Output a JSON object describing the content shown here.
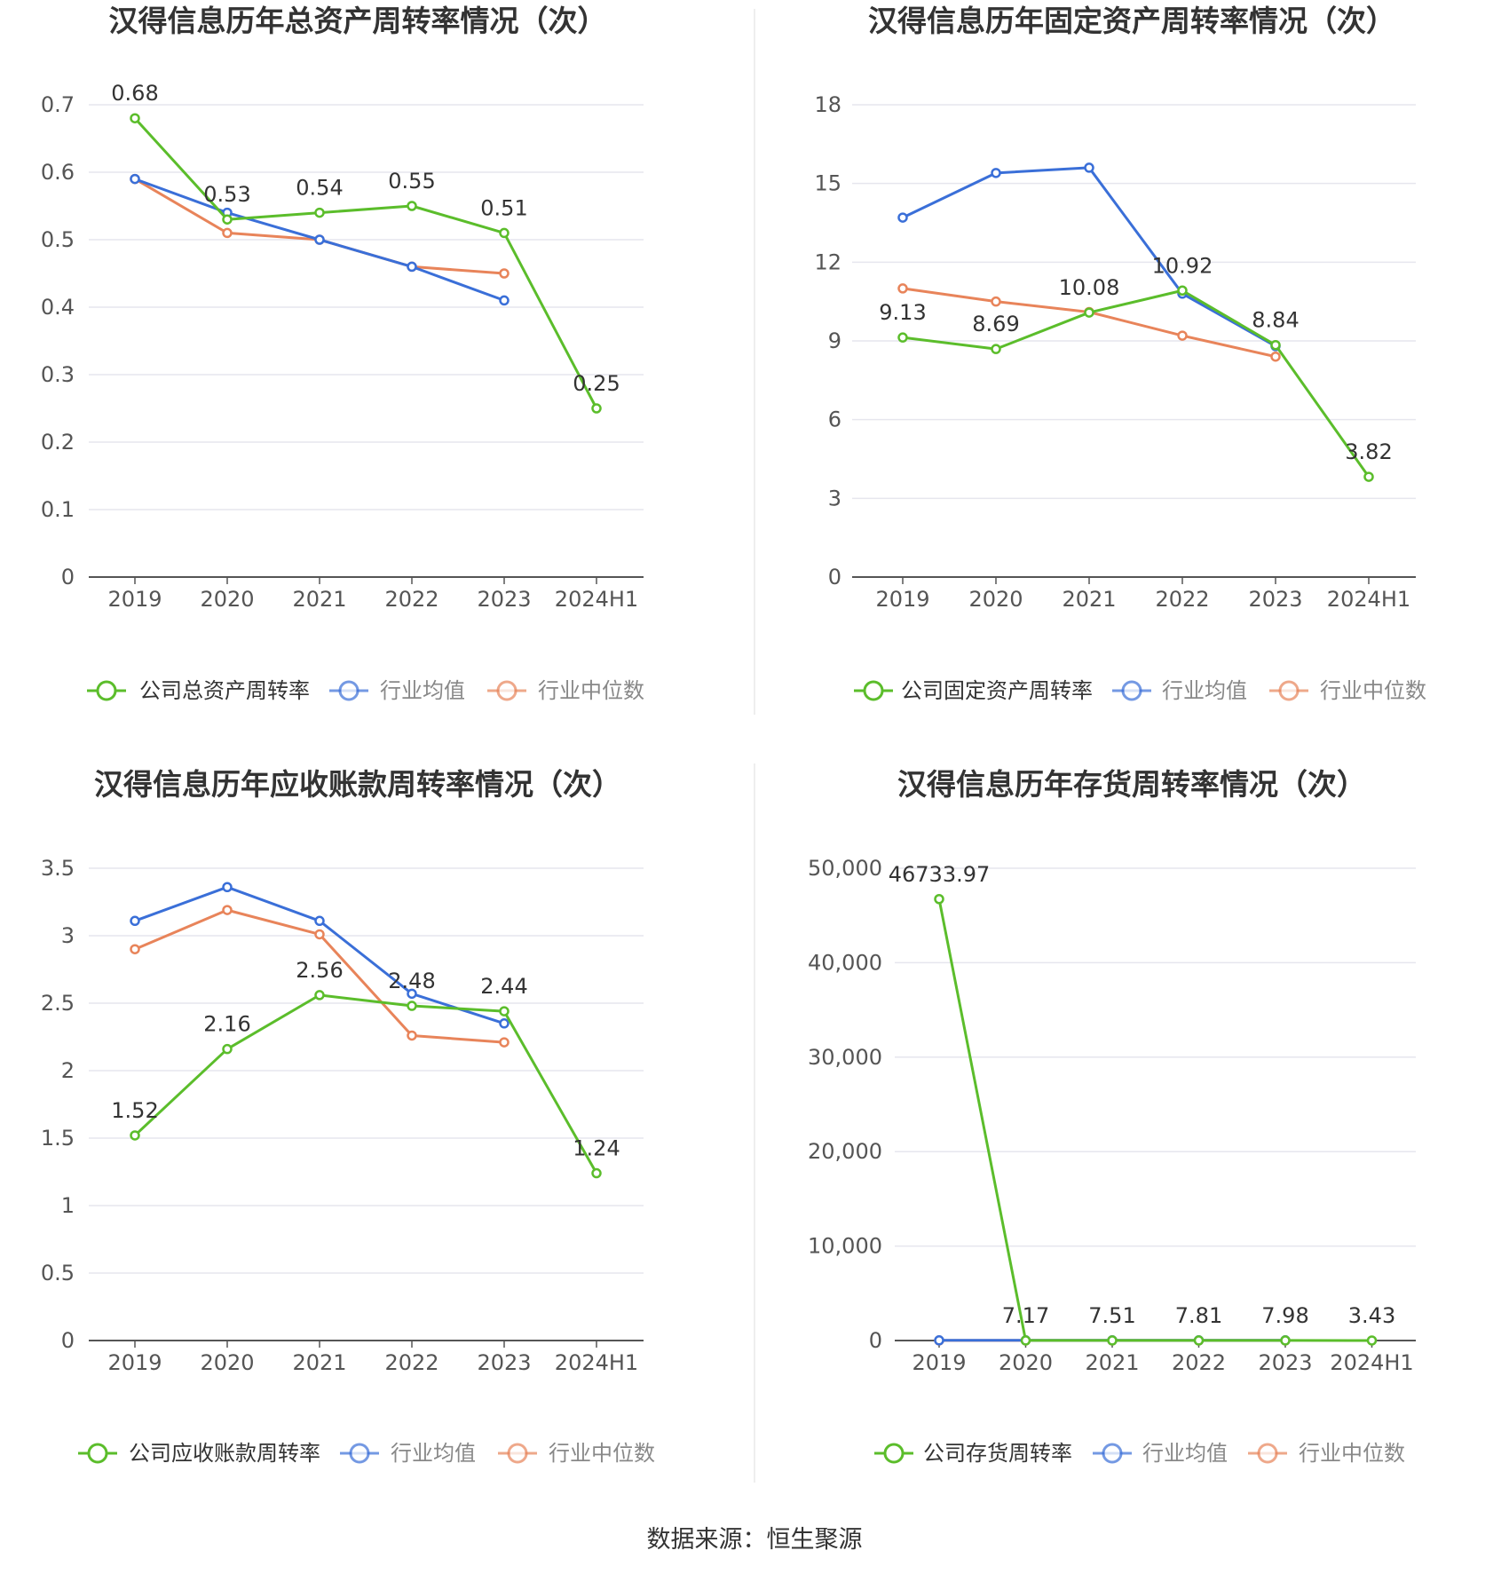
{
  "colors": {
    "company": "#5bbd2b",
    "average": "#3a6fd8",
    "median": "#e8845a",
    "grid": "#e6e6ee",
    "axis": "#555555"
  },
  "chart_data": [
    {
      "type": "line",
      "title": "汉得信息历年总资产周转率情况（次）",
      "categories": [
        "2019",
        "2020",
        "2021",
        "2022",
        "2023",
        "2024H1"
      ],
      "ylim": [
        0,
        0.7
      ],
      "yticks": [
        "0",
        "0.1",
        "0.2",
        "0.3",
        "0.4",
        "0.5",
        "0.6",
        "0.7"
      ],
      "ytick_values": [
        0,
        0.1,
        0.2,
        0.3,
        0.4,
        0.5,
        0.6,
        0.7
      ],
      "grid": true,
      "legend": "bottom",
      "series": [
        {
          "name": "公司总资产周转率",
          "values": [
            0.68,
            0.53,
            0.54,
            0.55,
            0.51,
            0.25
          ],
          "labels": [
            "0.68",
            "0.53",
            "0.54",
            "0.55",
            "0.51",
            "0.25"
          ]
        },
        {
          "name": "行业均值",
          "values": [
            0.59,
            0.54,
            0.5,
            0.46,
            0.41,
            null
          ]
        },
        {
          "name": "行业中位数",
          "values": [
            0.59,
            0.51,
            0.5,
            0.46,
            0.45,
            null
          ]
        }
      ]
    },
    {
      "type": "line",
      "title": "汉得信息历年固定资产周转率情况（次）",
      "categories": [
        "2019",
        "2020",
        "2021",
        "2022",
        "2023",
        "2024H1"
      ],
      "ylim": [
        0,
        18
      ],
      "yticks": [
        "0",
        "3",
        "6",
        "9",
        "12",
        "15",
        "18"
      ],
      "ytick_values": [
        0,
        3,
        6,
        9,
        12,
        15,
        18
      ],
      "grid": true,
      "legend": "bottom",
      "series": [
        {
          "name": "公司固定资产周转率",
          "values": [
            9.13,
            8.69,
            10.08,
            10.92,
            8.84,
            3.82
          ],
          "labels": [
            "9.13",
            "8.69",
            "10.08",
            "10.92",
            "8.84",
            "3.82"
          ]
        },
        {
          "name": "行业均值",
          "values": [
            13.7,
            15.4,
            15.6,
            10.8,
            8.8,
            null
          ]
        },
        {
          "name": "行业中位数",
          "values": [
            11.0,
            10.5,
            10.1,
            9.2,
            8.4,
            null
          ]
        }
      ]
    },
    {
      "type": "line",
      "title": "汉得信息历年应收账款周转率情况（次）",
      "categories": [
        "2019",
        "2020",
        "2021",
        "2022",
        "2023",
        "2024H1"
      ],
      "ylim": [
        0,
        3.5
      ],
      "yticks": [
        "0",
        "0.5",
        "1",
        "1.5",
        "2",
        "2.5",
        "3",
        "3.5"
      ],
      "ytick_values": [
        0,
        0.5,
        1,
        1.5,
        2,
        2.5,
        3,
        3.5
      ],
      "grid": true,
      "legend": "bottom",
      "series": [
        {
          "name": "公司应收账款周转率",
          "values": [
            1.52,
            2.16,
            2.56,
            2.48,
            2.44,
            1.24
          ],
          "labels": [
            "1.52",
            "2.16",
            "2.56",
            "2.48",
            "2.44",
            "1.24"
          ]
        },
        {
          "name": "行业均值",
          "values": [
            3.11,
            3.36,
            3.11,
            2.57,
            2.35,
            null
          ]
        },
        {
          "name": "行业中位数",
          "values": [
            2.9,
            3.19,
            3.01,
            2.26,
            2.21,
            null
          ]
        }
      ]
    },
    {
      "type": "line",
      "title": "汉得信息历年存货周转率情况（次）",
      "categories": [
        "2019",
        "2020",
        "2021",
        "2022",
        "2023",
        "2024H1"
      ],
      "ylim": [
        0,
        50000
      ],
      "yticks": [
        "0",
        "10,000",
        "20,000",
        "30,000",
        "40,000",
        "50,000"
      ],
      "ytick_values": [
        0,
        10000,
        20000,
        30000,
        40000,
        50000
      ],
      "grid": true,
      "legend": "bottom",
      "series": [
        {
          "name": "公司存货周转率",
          "values": [
            46733.97,
            7.17,
            7.51,
            7.81,
            7.98,
            3.43
          ],
          "labels": [
            "46733.97",
            "7.17",
            "7.51",
            "7.81",
            "7.98",
            "3.43"
          ]
        },
        {
          "name": "行业均值",
          "values": [
            20,
            20,
            20,
            20,
            20,
            null
          ]
        },
        {
          "name": "行业中位数",
          "values": [
            10,
            10,
            10,
            10,
            10,
            null
          ]
        }
      ]
    }
  ],
  "source": "数据来源：恒生聚源"
}
